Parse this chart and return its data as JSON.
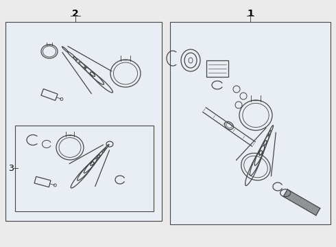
{
  "fig_bg": "#ebebeb",
  "box_bg": "#e8eef4",
  "line_color": "#444444",
  "lw": 0.9,
  "label1": "1",
  "label2": "2",
  "label3": "3"
}
